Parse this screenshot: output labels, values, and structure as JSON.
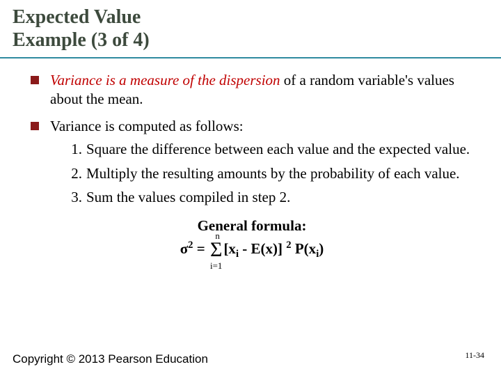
{
  "title": {
    "line1": "Expected Value",
    "line2": "Example (3 of 4)"
  },
  "bullets": {
    "b1_red": "Variance is a measure of the dispersion",
    "b1_rest": " of a random variable's values about the mean.",
    "b2": "Variance is computed as follows:"
  },
  "steps": {
    "s1": "Square the difference between each value and the expected value.",
    "s2": "Multiply the resulting amounts by the probability of each value.",
    "s3": "Sum the values compiled in step 2."
  },
  "formula": {
    "label": "General formula:",
    "sigma_sq": "σ",
    "sup2": "2",
    "equals": " = ",
    "sum_top": "n",
    "sum_bot": "i=1",
    "open": "[x",
    "sub_i_1": "i",
    "mid1": " - E(x)] ",
    "exp2": "2",
    "mid2": " P(x",
    "sub_i_2": "i",
    "close": ")"
  },
  "footer": {
    "copyright": "Copyright © 2013 Pearson Education",
    "pagenum": "11-34"
  },
  "style": {
    "title_color": "#3d4a3d",
    "rule_color": "#2f8aa0",
    "bullet_color": "#8b1a1a",
    "red_text": "#c00000",
    "body_fontsize": 21,
    "title_fontsize": 28
  }
}
